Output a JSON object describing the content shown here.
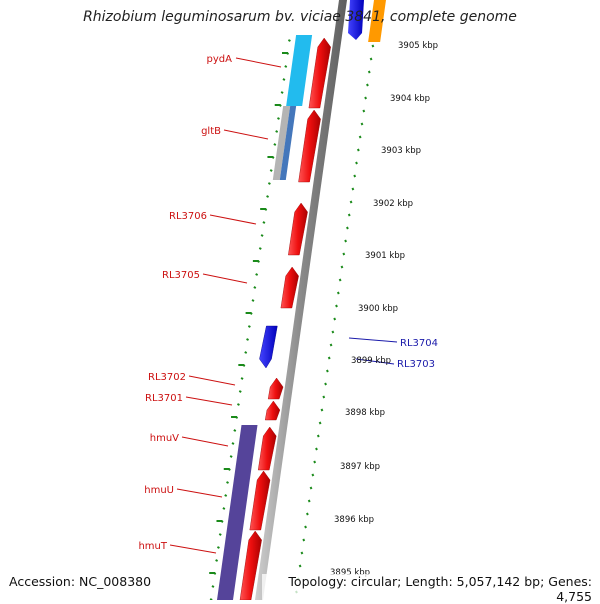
{
  "title": "Rhizobium leguminosarum bv. viciae 3841, complete genome",
  "accession": "Accession: NC_008380",
  "topology": "Topology: circular; Length: 5,057,142 bp; Genes: 4,755",
  "scale_ticks": [
    "3905 kbp",
    "3904 kbp",
    "3903 kbp",
    "3902 kbp",
    "3901 kbp",
    "3900 kbp",
    "3899 kbp",
    "3898 kbp",
    "3897 kbp",
    "3896 kbp",
    "3895 kbp"
  ],
  "genes": [
    {
      "label": "pydA",
      "strand": "minus"
    },
    {
      "label": "gltB",
      "strand": "minus"
    },
    {
      "label": "RL3706",
      "strand": "minus"
    },
    {
      "label": "RL3705",
      "strand": "minus"
    },
    {
      "label": "RL3704",
      "strand": "plus"
    },
    {
      "label": "RL3703",
      "strand": "plus"
    },
    {
      "label": "RL3702",
      "strand": "minus"
    },
    {
      "label": "RL3701",
      "strand": "minus"
    },
    {
      "label": "hmuV",
      "strand": "minus"
    },
    {
      "label": "hmuU",
      "strand": "minus"
    },
    {
      "label": "hmuT",
      "strand": "minus"
    }
  ],
  "colors": {
    "minus_gene": "#ee1111",
    "plus_gene": "#1a1aee",
    "minus_label": "#cc1111",
    "plus_label": "#1a1aaa",
    "backbone": "#909090",
    "ticks": "#1a8a1a",
    "cog_cyan": "#22bbee",
    "cog_gray": "#b4b4b4",
    "cog_blue": "#4477bb",
    "cog_purple": "#55449a",
    "cog_orange": "#ff9900"
  }
}
